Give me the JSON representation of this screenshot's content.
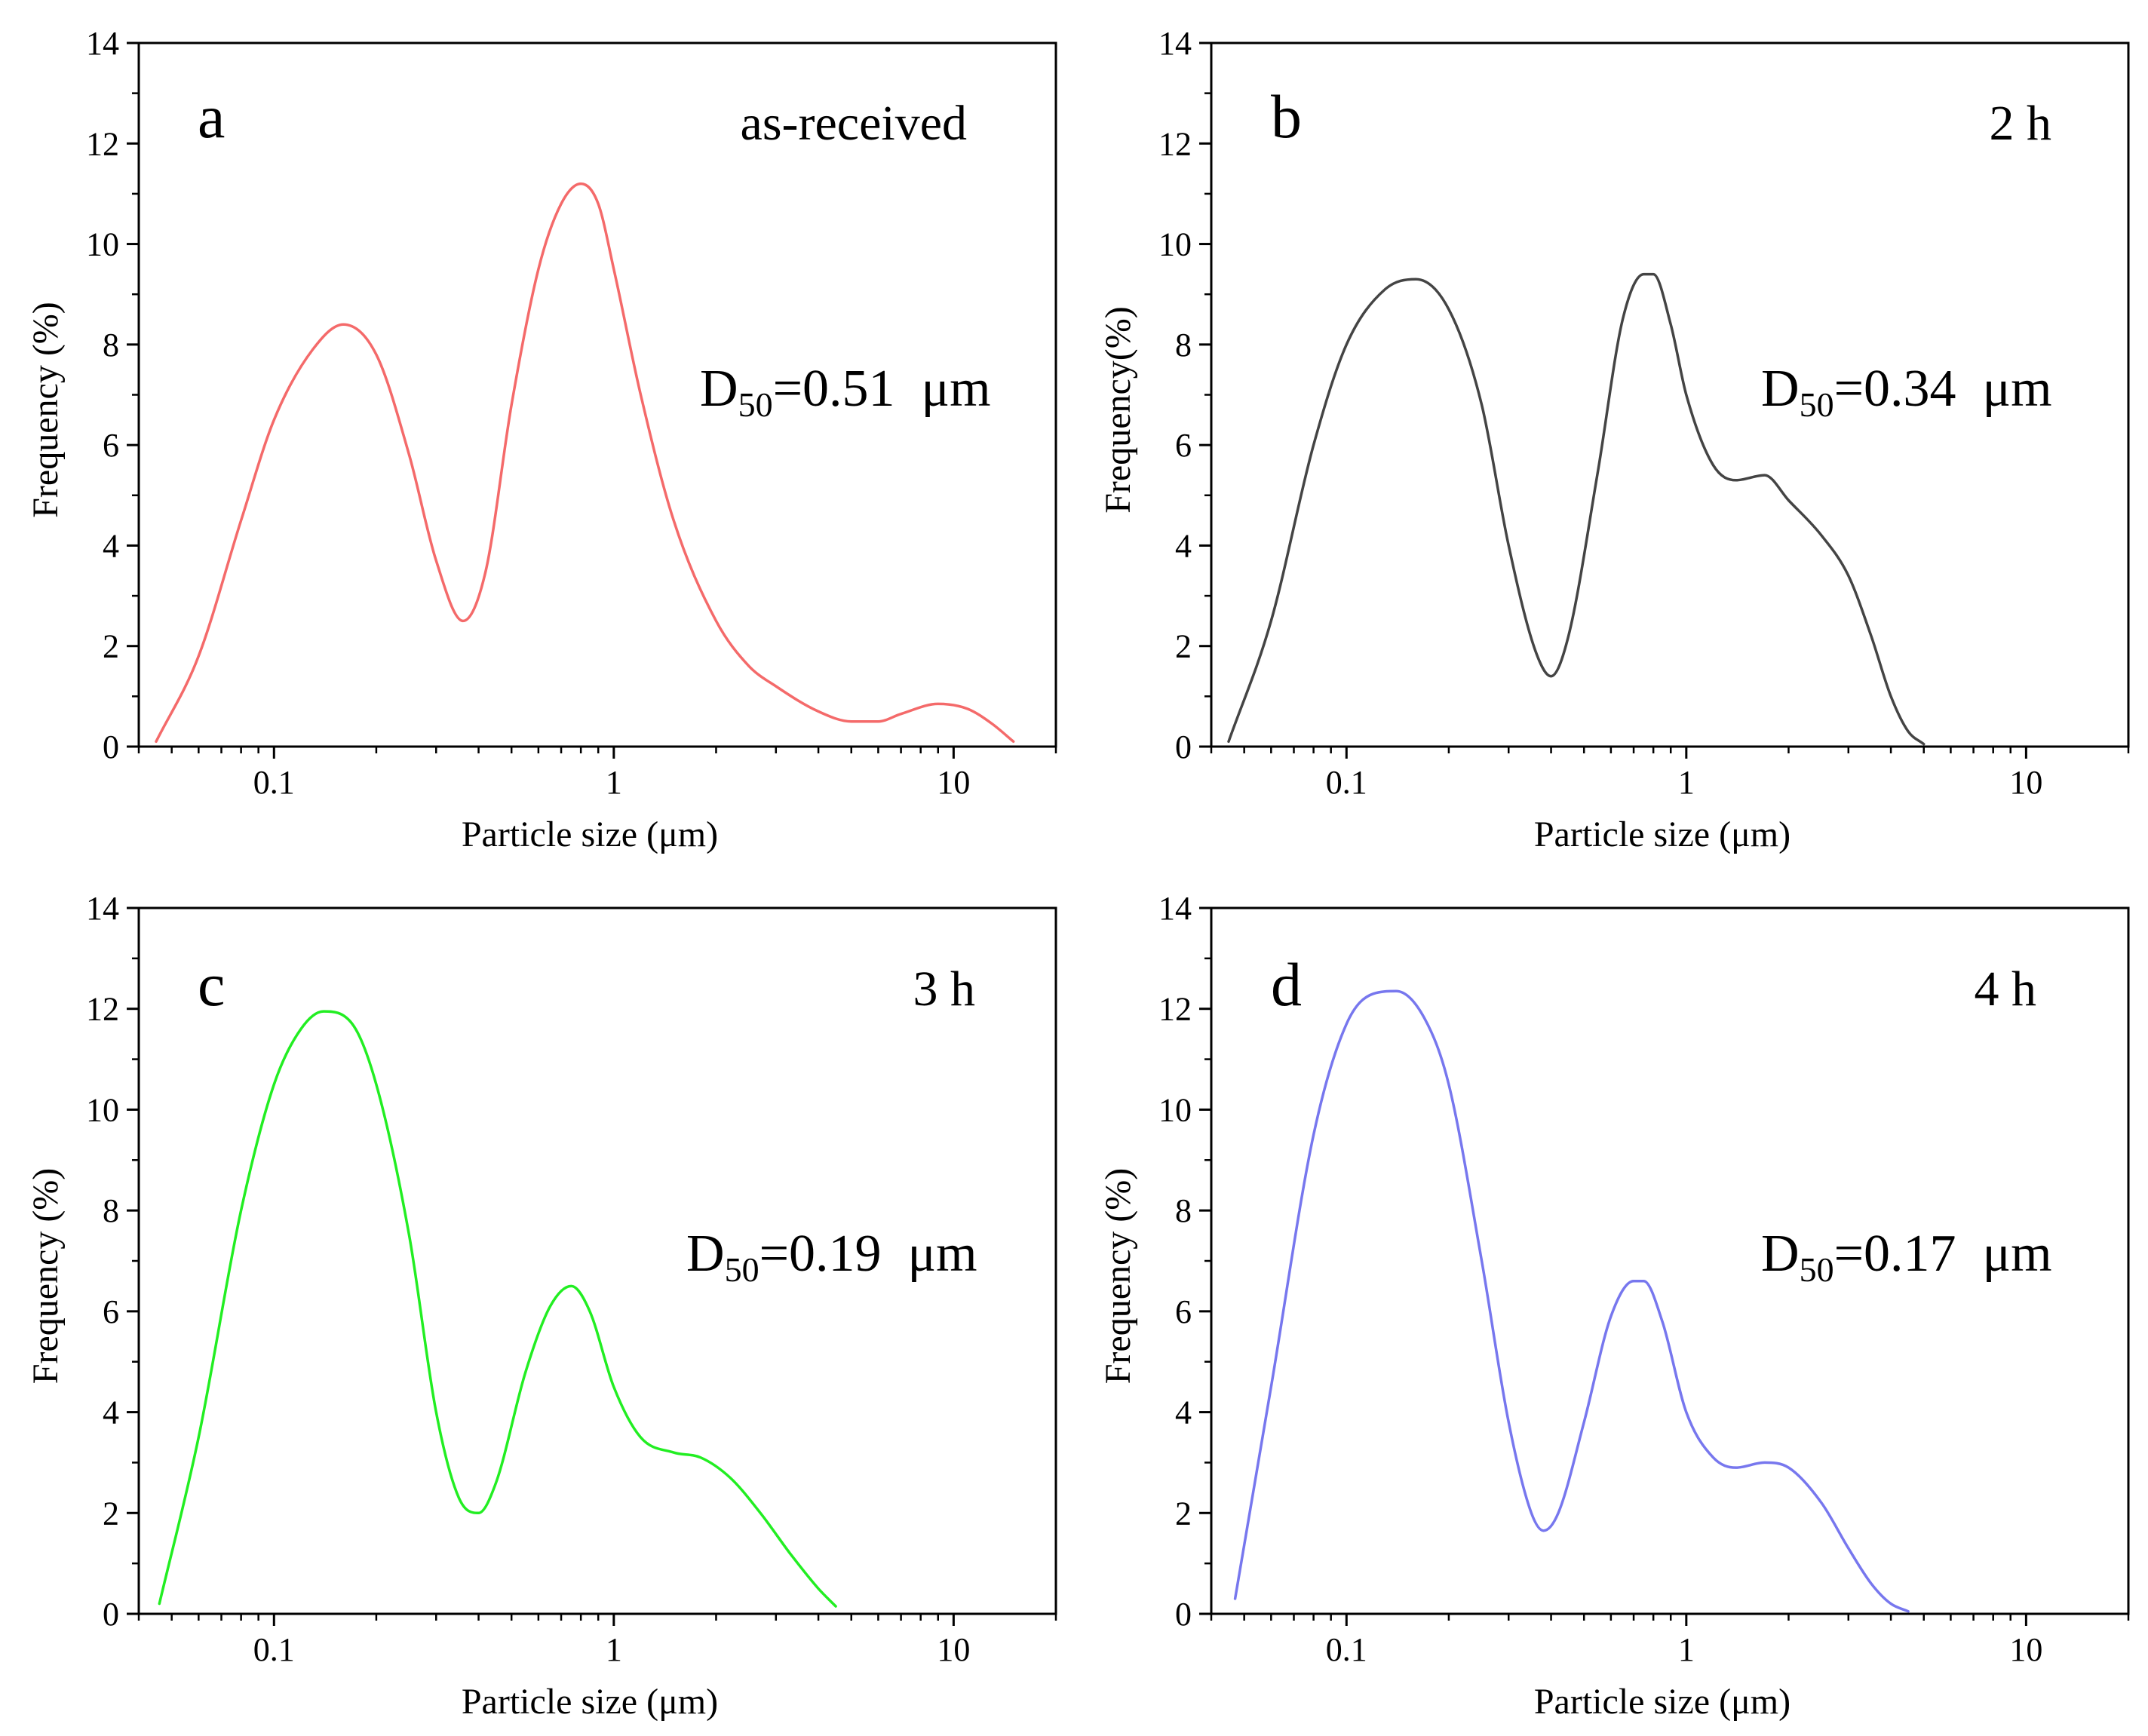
{
  "chart_data": [
    {
      "type": "line",
      "panel_label": "a",
      "annotation": "as-received",
      "d50": {
        "prefix": "D",
        "subscript": "50",
        "value_text": "=0.51  μm"
      },
      "xlabel": "Particle size (μm)",
      "ylabel": "Frequency (%)",
      "xscale": "log",
      "xlim": [
        0.04,
        20
      ],
      "ylim": [
        0,
        14
      ],
      "x_ticks": [
        0.1,
        1,
        10
      ],
      "x_tick_labels": [
        "0.1",
        "1",
        "10"
      ],
      "y_ticks": [
        0,
        2,
        4,
        6,
        8,
        10,
        12,
        14
      ],
      "y_tick_labels": [
        "0",
        "2",
        "4",
        "6",
        "8",
        "10",
        "12",
        "14"
      ],
      "color": "#f46a6a",
      "series": [
        {
          "name": "as-received",
          "x": [
            0.045,
            0.06,
            0.08,
            0.1,
            0.13,
            0.16,
            0.2,
            0.25,
            0.3,
            0.36,
            0.42,
            0.5,
            0.6,
            0.7,
            0.8,
            0.9,
            1.0,
            1.2,
            1.5,
            2.0,
            2.5,
            3.0,
            4.0,
            5.0,
            6.0,
            7.0,
            9.0,
            11.0,
            13.0,
            15.0
          ],
          "y": [
            0.1,
            1.8,
            4.5,
            6.5,
            7.9,
            8.4,
            7.8,
            5.8,
            3.7,
            2.5,
            3.5,
            6.8,
            9.5,
            10.8,
            11.2,
            10.8,
            9.5,
            7.0,
            4.5,
            2.5,
            1.6,
            1.2,
            0.7,
            0.5,
            0.5,
            0.65,
            0.85,
            0.75,
            0.45,
            0.1
          ]
        }
      ]
    },
    {
      "type": "line",
      "panel_label": "b",
      "annotation": "2 h",
      "d50": {
        "prefix": "D",
        "subscript": "50",
        "value_text": "=0.34  μm"
      },
      "xlabel": "Particle size (μm)",
      "ylabel": "Frequency(%)",
      "xscale": "log",
      "xlim": [
        0.04,
        20
      ],
      "ylim": [
        0,
        14
      ],
      "x_ticks": [
        0.1,
        1,
        10
      ],
      "x_tick_labels": [
        "0.1",
        "1",
        "10"
      ],
      "y_ticks": [
        0,
        2,
        4,
        6,
        8,
        10,
        12,
        14
      ],
      "y_tick_labels": [
        "0",
        "2",
        "4",
        "6",
        "8",
        "10",
        "12",
        "14"
      ],
      "color": "#444444",
      "series": [
        {
          "name": "2 h",
          "x": [
            0.045,
            0.06,
            0.08,
            0.1,
            0.13,
            0.16,
            0.2,
            0.25,
            0.3,
            0.36,
            0.4,
            0.45,
            0.55,
            0.65,
            0.75,
            0.8,
            0.9,
            1.0,
            1.2,
            1.4,
            1.7,
            2.0,
            2.5,
            3.0,
            3.5,
            4.0,
            4.5,
            5.0
          ],
          "y": [
            0.1,
            2.5,
            6.0,
            8.0,
            9.1,
            9.3,
            8.7,
            6.8,
            4.0,
            1.9,
            1.4,
            2.2,
            5.5,
            8.5,
            9.4,
            9.4,
            8.4,
            7.0,
            5.6,
            5.3,
            5.4,
            4.9,
            4.2,
            3.4,
            2.2,
            1.0,
            0.3,
            0.05
          ]
        }
      ]
    },
    {
      "type": "line",
      "panel_label": "c",
      "annotation": "3 h",
      "d50": {
        "prefix": "D",
        "subscript": "50",
        "value_text": "=0.19  μm"
      },
      "xlabel": "Particle size (μm)",
      "ylabel": "Frequency (%)",
      "xscale": "log",
      "xlim": [
        0.04,
        20
      ],
      "ylim": [
        0,
        14
      ],
      "x_ticks": [
        0.1,
        1,
        10
      ],
      "x_tick_labels": [
        "0.1",
        "1",
        "10"
      ],
      "y_ticks": [
        0,
        2,
        4,
        6,
        8,
        10,
        12,
        14
      ],
      "y_tick_labels": [
        "0",
        "2",
        "4",
        "6",
        "8",
        "10",
        "12",
        "14"
      ],
      "color": "#22ee22",
      "series": [
        {
          "name": "3 h",
          "x": [
            0.046,
            0.06,
            0.08,
            0.1,
            0.12,
            0.14,
            0.17,
            0.2,
            0.25,
            0.3,
            0.35,
            0.4,
            0.45,
            0.55,
            0.65,
            0.75,
            0.85,
            1.0,
            1.2,
            1.5,
            1.8,
            2.2,
            2.7,
            3.3,
            4.0,
            4.5
          ],
          "y": [
            0.2,
            3.5,
            8.0,
            10.5,
            11.6,
            11.95,
            11.7,
            10.5,
            7.5,
            4.0,
            2.3,
            2.0,
            2.6,
            4.8,
            6.1,
            6.5,
            6.0,
            4.5,
            3.5,
            3.2,
            3.1,
            2.7,
            2.0,
            1.2,
            0.5,
            0.15
          ]
        }
      ]
    },
    {
      "type": "line",
      "panel_label": "d",
      "annotation": "4 h",
      "d50": {
        "prefix": "D",
        "subscript": "50",
        "value_text": "=0.17  μm"
      },
      "xlabel": "Particle size (μm)",
      "ylabel": "Frequency (%)",
      "xscale": "log",
      "xlim": [
        0.04,
        20
      ],
      "ylim": [
        0,
        14
      ],
      "x_ticks": [
        0.1,
        1,
        10
      ],
      "x_tick_labels": [
        "0.1",
        "1",
        "10"
      ],
      "y_ticks": [
        0,
        2,
        4,
        6,
        8,
        10,
        12,
        14
      ],
      "y_tick_labels": [
        "0",
        "2",
        "4",
        "6",
        "8",
        "10",
        "12",
        "14"
      ],
      "color": "#7777ee",
      "series": [
        {
          "name": "4 h",
          "x": [
            0.047,
            0.06,
            0.08,
            0.1,
            0.12,
            0.14,
            0.17,
            0.2,
            0.25,
            0.3,
            0.35,
            0.38,
            0.42,
            0.5,
            0.6,
            0.7,
            0.75,
            0.85,
            1.0,
            1.2,
            1.4,
            1.7,
            2.0,
            2.5,
            3.0,
            3.5,
            4.0,
            4.5
          ],
          "y": [
            0.3,
            4.5,
            9.5,
            11.7,
            12.3,
            12.35,
            11.8,
            10.5,
            7.0,
            3.8,
            2.0,
            1.65,
            2.0,
            3.8,
            5.9,
            6.6,
            6.6,
            5.8,
            4.0,
            3.1,
            2.9,
            3.0,
            2.9,
            2.2,
            1.3,
            0.6,
            0.2,
            0.05
          ]
        }
      ]
    }
  ]
}
